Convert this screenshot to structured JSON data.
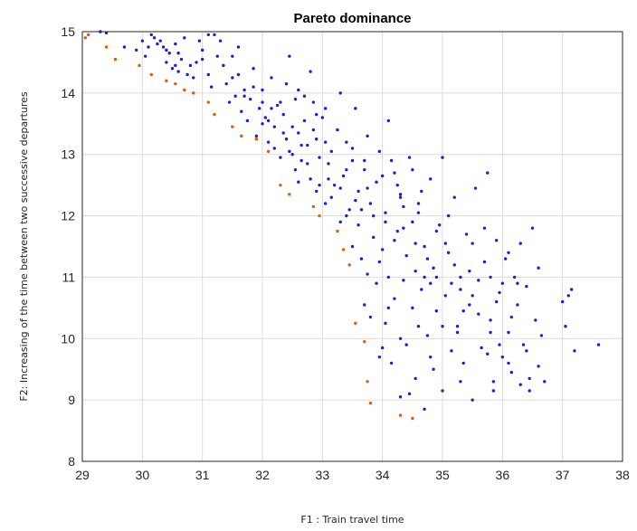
{
  "chart_data": {
    "type": "scatter",
    "title": "Pareto dominance",
    "xlabel": "F1 : Train travel time",
    "ylabel": "F2: Increasing of the time between two successive departures",
    "xlim": [
      29,
      38
    ],
    "ylim": [
      8,
      15
    ],
    "xticks": [
      "29",
      "30",
      "31",
      "32",
      "33",
      "34",
      "35",
      "36",
      "37",
      "38"
    ],
    "yticks": [
      "8",
      "9",
      "10",
      "11",
      "12",
      "13",
      "14",
      "15"
    ],
    "grid": true,
    "series": [
      {
        "color": "#1f1fd6",
        "points": [
          [
            29.3,
            15.0
          ],
          [
            29.4,
            14.98
          ],
          [
            29.7,
            14.75
          ],
          [
            29.9,
            14.7
          ],
          [
            30.0,
            14.85
          ],
          [
            30.05,
            14.6
          ],
          [
            30.1,
            14.75
          ],
          [
            30.15,
            14.95
          ],
          [
            30.2,
            14.9
          ],
          [
            30.25,
            14.8
          ],
          [
            30.3,
            14.85
          ],
          [
            30.35,
            14.75
          ],
          [
            30.4,
            14.5
          ],
          [
            30.45,
            14.65
          ],
          [
            30.5,
            14.4
          ],
          [
            30.55,
            14.45
          ],
          [
            30.6,
            14.35
          ],
          [
            30.55,
            14.8
          ],
          [
            30.65,
            14.55
          ],
          [
            30.7,
            14.9
          ],
          [
            30.75,
            14.3
          ],
          [
            30.85,
            14.25
          ],
          [
            30.9,
            14.5
          ],
          [
            30.95,
            14.85
          ],
          [
            31.0,
            14.55
          ],
          [
            31.1,
            14.95
          ],
          [
            31.1,
            14.3
          ],
          [
            31.15,
            14.1
          ],
          [
            31.2,
            14.95
          ],
          [
            31.3,
            14.85
          ],
          [
            31.35,
            14.45
          ],
          [
            31.4,
            14.15
          ],
          [
            31.45,
            13.85
          ],
          [
            31.5,
            14.6
          ],
          [
            31.55,
            13.95
          ],
          [
            31.6,
            14.75
          ],
          [
            31.65,
            13.7
          ],
          [
            31.7,
            14.05
          ],
          [
            31.75,
            13.55
          ],
          [
            31.8,
            13.9
          ],
          [
            31.85,
            14.4
          ],
          [
            31.9,
            13.3
          ],
          [
            31.95,
            13.75
          ],
          [
            32.0,
            14.05
          ],
          [
            32.0,
            13.5
          ],
          [
            32.05,
            13.6
          ],
          [
            32.1,
            13.2
          ],
          [
            32.15,
            14.25
          ],
          [
            32.2,
            13.45
          ],
          [
            32.2,
            13.1
          ],
          [
            32.25,
            13.8
          ],
          [
            32.3,
            12.95
          ],
          [
            32.35,
            13.65
          ],
          [
            32.4,
            14.15
          ],
          [
            32.4,
            13.25
          ],
          [
            32.45,
            14.6
          ],
          [
            32.5,
            13.0
          ],
          [
            32.5,
            13.45
          ],
          [
            32.55,
            12.75
          ],
          [
            32.6,
            13.35
          ],
          [
            32.6,
            14.05
          ],
          [
            32.65,
            12.9
          ],
          [
            32.7,
            13.55
          ],
          [
            32.75,
            13.15
          ],
          [
            32.8,
            14.35
          ],
          [
            32.8,
            12.6
          ],
          [
            32.85,
            13.85
          ],
          [
            32.9,
            13.25
          ],
          [
            32.9,
            12.4
          ],
          [
            32.95,
            12.95
          ],
          [
            33.0,
            13.6
          ],
          [
            33.05,
            12.2
          ],
          [
            33.1,
            12.85
          ],
          [
            33.15,
            13.05
          ],
          [
            33.2,
            12.5
          ],
          [
            33.25,
            13.4
          ],
          [
            33.3,
            14.0
          ],
          [
            33.3,
            11.9
          ],
          [
            33.35,
            12.65
          ],
          [
            33.4,
            13.2
          ],
          [
            33.45,
            12.1
          ],
          [
            33.5,
            11.5
          ],
          [
            33.5,
            12.9
          ],
          [
            33.55,
            13.75
          ],
          [
            33.6,
            11.85
          ],
          [
            33.6,
            12.4
          ],
          [
            33.65,
            11.3
          ],
          [
            33.7,
            12.75
          ],
          [
            33.7,
            10.55
          ],
          [
            33.75,
            13.3
          ],
          [
            33.75,
            11.05
          ],
          [
            33.8,
            12.2
          ],
          [
            33.8,
            10.35
          ],
          [
            33.85,
            11.65
          ],
          [
            33.9,
            12.55
          ],
          [
            33.9,
            10.9
          ],
          [
            33.95,
            13.05
          ],
          [
            34.0,
            11.45
          ],
          [
            34.0,
            9.85
          ],
          [
            34.05,
            12.05
          ],
          [
            34.05,
            10.25
          ],
          [
            34.1,
            13.55
          ],
          [
            34.1,
            11.0
          ],
          [
            34.15,
            9.6
          ],
          [
            34.2,
            12.7
          ],
          [
            34.2,
            10.65
          ],
          [
            34.25,
            11.75
          ],
          [
            34.3,
            9.05
          ],
          [
            34.3,
            12.35
          ],
          [
            34.35,
            10.95
          ],
          [
            34.4,
            9.9
          ],
          [
            34.4,
            11.35
          ],
          [
            34.45,
            12.95
          ],
          [
            34.5,
            10.5
          ],
          [
            34.5,
            11.9
          ],
          [
            34.55,
            9.35
          ],
          [
            34.6,
            12.2
          ],
          [
            34.65,
            10.8
          ],
          [
            34.7,
            11.5
          ],
          [
            34.7,
            8.85
          ],
          [
            34.75,
            10.05
          ],
          [
            34.8,
            12.6
          ],
          [
            34.85,
            11.15
          ],
          [
            34.85,
            9.5
          ],
          [
            34.9,
            10.45
          ],
          [
            34.95,
            11.85
          ],
          [
            35.0,
            9.15
          ],
          [
            35.0,
            12.95
          ],
          [
            35.05,
            10.7
          ],
          [
            35.1,
            11.4
          ],
          [
            35.15,
            9.8
          ],
          [
            35.2,
            12.3
          ],
          [
            35.25,
            10.2
          ],
          [
            35.3,
            11.0
          ],
          [
            35.35,
            9.6
          ],
          [
            35.4,
            11.7
          ],
          [
            35.45,
            10.55
          ],
          [
            35.5,
            9.0
          ],
          [
            35.55,
            12.45
          ],
          [
            35.6,
            10.95
          ],
          [
            35.65,
            9.85
          ],
          [
            35.7,
            11.25
          ],
          [
            35.75,
            12.7
          ],
          [
            35.8,
            10.3
          ],
          [
            35.85,
            9.3
          ],
          [
            35.9,
            11.6
          ],
          [
            35.95,
            10.75
          ],
          [
            36.0,
            9.7
          ],
          [
            36.05,
            11.3
          ],
          [
            36.1,
            10.1
          ],
          [
            36.15,
            9.45
          ],
          [
            36.2,
            11.0
          ],
          [
            36.25,
            10.55
          ],
          [
            36.3,
            11.55
          ],
          [
            36.35,
            9.9
          ],
          [
            36.4,
            10.85
          ],
          [
            36.45,
            9.35
          ],
          [
            36.5,
            11.8
          ],
          [
            36.55,
            10.3
          ],
          [
            36.6,
            9.55
          ],
          [
            36.6,
            11.15
          ],
          [
            36.65,
            10.05
          ],
          [
            36.7,
            9.3
          ],
          [
            37.0,
            10.6
          ],
          [
            37.05,
            10.2
          ],
          [
            37.1,
            10.7
          ],
          [
            37.15,
            10.8
          ],
          [
            37.2,
            9.8
          ],
          [
            37.6,
            9.9
          ],
          [
            32.15,
            13.75
          ],
          [
            32.3,
            13.85
          ],
          [
            32.7,
            13.95
          ],
          [
            32.85,
            13.4
          ],
          [
            33.05,
            13.2
          ],
          [
            33.15,
            12.3
          ],
          [
            33.4,
            12.0
          ],
          [
            33.65,
            12.1
          ],
          [
            33.85,
            12.0
          ],
          [
            34.15,
            12.9
          ],
          [
            34.25,
            12.5
          ],
          [
            34.35,
            11.8
          ],
          [
            34.55,
            11.1
          ],
          [
            34.65,
            12.4
          ],
          [
            34.75,
            11.3
          ],
          [
            34.9,
            11.0
          ],
          [
            35.0,
            10.2
          ],
          [
            35.1,
            12.0
          ],
          [
            35.3,
            10.8
          ],
          [
            35.45,
            11.1
          ],
          [
            35.6,
            10.4
          ],
          [
            35.8,
            11.0
          ],
          [
            35.95,
            9.9
          ],
          [
            36.1,
            11.4
          ],
          [
            36.25,
            10.9
          ],
          [
            36.4,
            9.8
          ],
          [
            34.1,
            10.5
          ],
          [
            34.3,
            10.0
          ],
          [
            34.6,
            10.2
          ],
          [
            34.8,
            9.7
          ],
          [
            33.95,
            9.7
          ],
          [
            34.45,
            9.1
          ],
          [
            35.3,
            9.3
          ],
          [
            35.85,
            9.15
          ],
          [
            36.3,
            9.25
          ],
          [
            34.05,
            11.9
          ],
          [
            34.35,
            12.15
          ],
          [
            34.55,
            11.55
          ],
          [
            34.8,
            10.9
          ],
          [
            35.05,
            11.55
          ],
          [
            35.25,
            10.1
          ],
          [
            35.5,
            11.55
          ],
          [
            35.7,
            11.8
          ],
          [
            35.9,
            10.6
          ],
          [
            36.0,
            10.9
          ],
          [
            33.4,
            12.75
          ],
          [
            33.55,
            12.25
          ],
          [
            33.75,
            12.45
          ],
          [
            33.95,
            11.25
          ],
          [
            34.2,
            11.6
          ],
          [
            34.5,
            12.75
          ],
          [
            34.7,
            11.0
          ],
          [
            35.15,
            10.9
          ],
          [
            35.35,
            10.45
          ],
          [
            35.75,
            9.75
          ],
          [
            36.15,
            10.35
          ],
          [
            32.45,
            13.05
          ],
          [
            32.6,
            12.55
          ],
          [
            32.75,
            12.85
          ],
          [
            32.95,
            12.5
          ],
          [
            33.1,
            12.6
          ],
          [
            33.3,
            12.45
          ],
          [
            31.6,
            14.3
          ],
          [
            31.85,
            14.1
          ],
          [
            32.0,
            13.85
          ],
          [
            32.55,
            13.9
          ],
          [
            32.9,
            13.65
          ],
          [
            33.05,
            13.75
          ],
          [
            30.4,
            14.7
          ],
          [
            30.6,
            14.65
          ],
          [
            30.8,
            14.45
          ],
          [
            31.0,
            14.7
          ],
          [
            31.25,
            14.6
          ],
          [
            31.5,
            14.25
          ],
          [
            31.7,
            13.95
          ],
          [
            32.1,
            13.55
          ],
          [
            32.35,
            13.35
          ],
          [
            32.65,
            13.15
          ],
          [
            33.5,
            13.1
          ],
          [
            33.7,
            12.9
          ],
          [
            34.0,
            12.65
          ],
          [
            34.3,
            12.3
          ],
          [
            34.6,
            12.05
          ],
          [
            34.9,
            11.75
          ],
          [
            35.2,
            11.2
          ],
          [
            35.5,
            10.7
          ],
          [
            35.8,
            10.1
          ],
          [
            36.1,
            9.6
          ],
          [
            36.45,
            9.15
          ]
        ]
      },
      {
        "color": "#e05a10",
        "points": [
          [
            29.05,
            14.9
          ],
          [
            29.1,
            14.95
          ],
          [
            29.4,
            14.75
          ],
          [
            29.55,
            14.55
          ],
          [
            29.95,
            14.45
          ],
          [
            30.15,
            14.3
          ],
          [
            30.4,
            14.2
          ],
          [
            30.55,
            14.15
          ],
          [
            30.7,
            14.05
          ],
          [
            30.85,
            14.0
          ],
          [
            31.1,
            13.85
          ],
          [
            31.2,
            13.65
          ],
          [
            31.5,
            13.45
          ],
          [
            31.65,
            13.3
          ],
          [
            31.9,
            13.25
          ],
          [
            32.1,
            13.05
          ],
          [
            32.3,
            12.5
          ],
          [
            32.45,
            12.35
          ],
          [
            32.85,
            12.15
          ],
          [
            32.95,
            12.0
          ],
          [
            33.25,
            11.75
          ],
          [
            33.35,
            11.45
          ],
          [
            33.45,
            11.2
          ],
          [
            33.55,
            10.25
          ],
          [
            33.7,
            9.95
          ],
          [
            33.75,
            9.3
          ],
          [
            33.8,
            8.95
          ],
          [
            34.3,
            8.75
          ],
          [
            34.5,
            8.7
          ]
        ]
      }
    ]
  }
}
